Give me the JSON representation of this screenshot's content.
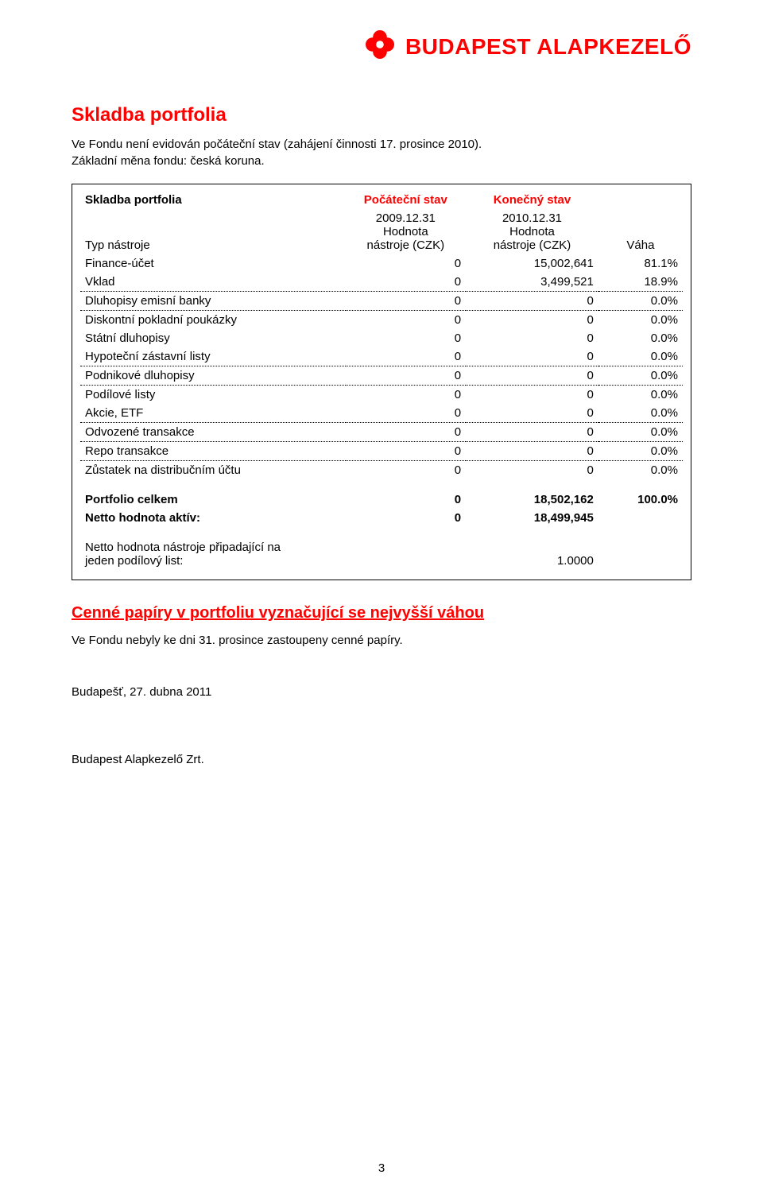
{
  "brand": {
    "logo_text": "BUDAPEST ALAPKEZELŐ",
    "logo_color": "#ff0000",
    "icon_color": "#ff0000"
  },
  "colors": {
    "accent": "#ff0000",
    "text": "#000000",
    "background": "#ffffff",
    "table_border": "#000000",
    "dotted_rule": "#000000"
  },
  "typography": {
    "body_fontsize_pt": 11,
    "heading_fontsize_pt": 18,
    "subheading_fontsize_pt": 15,
    "font_family": "Arial"
  },
  "heading_skladba": "Skladba portfolia",
  "intro_line1": "Ve Fondu není evidován počáteční stav (zahájení činnosti 17. prosince 2010).",
  "intro_line2": "Základní měna fondu: česká koruna.",
  "table": {
    "header_portfolio": "Skladba portfolia",
    "header_pocatecni": "Počáteční stav",
    "header_konecny": "Konečný stav",
    "typ_nastroje_label": "Typ nástroje",
    "col_pocatecni_sub": "2009.12.31\nHodnota\nnástroje (CZK)",
    "col_konecny_sub": "2010.12.31\nHodnota\nnástroje (CZK)",
    "col_vaha": "Váha",
    "rows": [
      {
        "label": "Finance-účet",
        "v1": "0",
        "v2": "15,002,641",
        "w": "81.1%",
        "group_end": false
      },
      {
        "label": "Vklad",
        "v1": "0",
        "v2": "3,499,521",
        "w": "18.9%",
        "group_end": true
      },
      {
        "label": "Dluhopisy emisní banky",
        "v1": "0",
        "v2": "0",
        "w": "0.0%",
        "group_end": true
      },
      {
        "label": "Diskontní pokladní poukázky",
        "v1": "0",
        "v2": "0",
        "w": "0.0%",
        "group_end": false
      },
      {
        "label": "Státní dluhopisy",
        "v1": "0",
        "v2": "0",
        "w": "0.0%",
        "group_end": false
      },
      {
        "label": "Hypoteční zástavní listy",
        "v1": "0",
        "v2": "0",
        "w": "0.0%",
        "group_end": true
      },
      {
        "label": "Podnikové dluhopisy",
        "v1": "0",
        "v2": "0",
        "w": "0.0%",
        "group_end": true
      },
      {
        "label": "Podílové listy",
        "v1": "0",
        "v2": "0",
        "w": "0.0%",
        "group_end": false
      },
      {
        "label": "Akcie, ETF",
        "v1": "0",
        "v2": "0",
        "w": "0.0%",
        "group_end": true
      },
      {
        "label": "Odvozené transakce",
        "v1": "0",
        "v2": "0",
        "w": "0.0%",
        "group_end": true
      },
      {
        "label": "Repo transakce",
        "v1": "0",
        "v2": "0",
        "w": "0.0%",
        "group_end": true
      },
      {
        "label": "Zůstatek na distribučním účtu",
        "v1": "0",
        "v2": "0",
        "w": "0.0%",
        "group_end": false
      }
    ],
    "totals": [
      {
        "label": "Portfolio celkem",
        "v1": "0",
        "v2": "18,502,162",
        "w": "100.0%"
      },
      {
        "label": "Netto hodnota aktív:",
        "v1": "0",
        "v2": "18,499,945",
        "w": ""
      }
    ],
    "note_label": "Netto hodnota nástroje připadající na\njeden podílový list:",
    "note_value": "1.0000"
  },
  "section2_heading": "Cenné papíry v portfoliu vyznačující se nejvyšší váhou",
  "section2_line": "Ve Fondu nebyly ke dni 31. prosince zastoupeny cenné papíry.",
  "place_date": "Budapešť, 27. dubna 2011",
  "company": "Budapest Alapkezelő Zrt.",
  "page_number": "3"
}
